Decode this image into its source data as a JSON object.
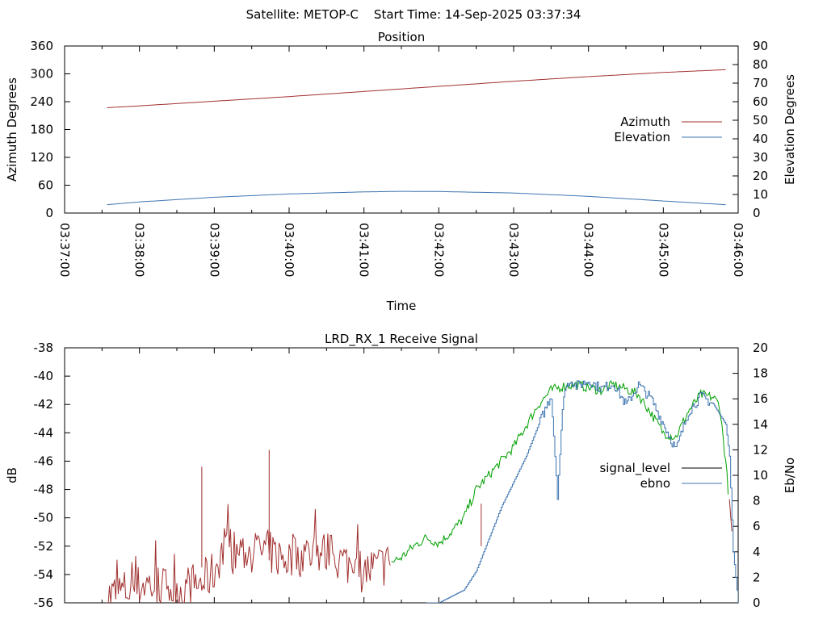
{
  "header": {
    "text": "Satellite: METOP-C    Start Time: 14-Sep-2025 03:37:34"
  },
  "chart_data": [
    {
      "type": "line",
      "title": "Position",
      "xlabel": "Time",
      "ylabel": "Azimuth Degrees",
      "y2label": "Elevation Degrees",
      "x_ticks": [
        "03:37:00",
        "03:38:00",
        "03:39:00",
        "03:40:00",
        "03:41:00",
        "03:42:00",
        "03:43:00",
        "03:44:00",
        "03:45:00",
        "03:46:00"
      ],
      "xlim": [
        0,
        540
      ],
      "ylim": [
        0,
        360
      ],
      "y2lim": [
        0,
        90
      ],
      "y_ticks": [
        0,
        60,
        120,
        180,
        240,
        300,
        360
      ],
      "y2_ticks": [
        0,
        10,
        20,
        30,
        40,
        50,
        60,
        70,
        80,
        90
      ],
      "legend_position": "right",
      "series": [
        {
          "name": "Azimuth",
          "axis": "left",
          "color": "#a0302e",
          "x": [
            34,
            60,
            120,
            180,
            240,
            300,
            360,
            420,
            480,
            530
          ],
          "values": [
            227,
            231,
            241,
            251,
            262,
            273,
            284,
            294,
            303,
            309
          ]
        },
        {
          "name": "Elevation",
          "axis": "right",
          "color": "#3d74b0",
          "x": [
            34,
            60,
            120,
            180,
            240,
            270,
            300,
            360,
            420,
            480,
            530
          ],
          "values": [
            4.5,
            6,
            8.5,
            10.3,
            11.4,
            11.7,
            11.6,
            10.8,
            9,
            6.5,
            4.5
          ]
        }
      ]
    },
    {
      "type": "line",
      "title": "LRD_RX_1 Receive Signal",
      "ylabel": "dB",
      "y2label": "Eb/No",
      "xlim": [
        0,
        540
      ],
      "ylim": [
        -56,
        -38
      ],
      "y2lim": [
        0,
        20
      ],
      "y_ticks": [
        -56,
        -54,
        -52,
        -50,
        -48,
        -46,
        -44,
        -42,
        -40,
        -38
      ],
      "y2_ticks": [
        0,
        2,
        4,
        6,
        8,
        10,
        12,
        14,
        16,
        18,
        20
      ],
      "legend_position": "right",
      "series": [
        {
          "name": "signal_level",
          "axis": "left",
          "color": "#a0302e",
          "color_high": "#00a000",
          "x": [
            34,
            45,
            55,
            65,
            75,
            85,
            95,
            100,
            110,
            120,
            125,
            130,
            140,
            150,
            160,
            170,
            180,
            190,
            200,
            210,
            220,
            230,
            240,
            250,
            260,
            270,
            280,
            290,
            300,
            310,
            320,
            330,
            340,
            350,
            360,
            370,
            380,
            390,
            400,
            410,
            420,
            430,
            440,
            450,
            460,
            470,
            480,
            490,
            500,
            510,
            520,
            525,
            530,
            535
          ],
          "values": [
            -55.6,
            -55.2,
            -55.0,
            -54.6,
            -54.9,
            -55.0,
            -55.1,
            -54.8,
            -54.6,
            -53.8,
            -52.5,
            -52.4,
            -52.4,
            -52.5,
            -52.3,
            -52.7,
            -52.9,
            -52.6,
            -52.4,
            -52.5,
            -53.0,
            -53.3,
            -53.8,
            -53.5,
            -53.2,
            -52.8,
            -52.0,
            -51.4,
            -51.8,
            -51.0,
            -50.0,
            -48.0,
            -47.0,
            -46.0,
            -45.0,
            -43.5,
            -42.0,
            -41.0,
            -40.7,
            -40.6,
            -40.8,
            -41.0,
            -40.6,
            -40.9,
            -41.3,
            -42.6,
            -44.0,
            -44.3,
            -42.5,
            -41.3,
            -41.5,
            -42.0,
            -46.0,
            -51.0
          ],
          "spikes": [
            {
              "x": 110,
              "values": [
                -46.4,
                -53.5
              ]
            },
            {
              "x": 164,
              "values": [
                -45.2,
                -53.0
              ]
            },
            {
              "x": 334,
              "values": [
                -49.0,
                -52.0
              ]
            }
          ]
        },
        {
          "name": "ebno",
          "axis": "right",
          "color": "#3d74b0",
          "x": [
            290,
            300,
            310,
            320,
            330,
            340,
            350,
            360,
            370,
            380,
            390,
            395,
            400,
            405,
            410,
            420,
            430,
            440,
            450,
            460,
            470,
            480,
            490,
            500,
            510,
            520,
            525,
            530,
            533,
            536,
            540
          ],
          "values": [
            0,
            0,
            0.5,
            1,
            2.5,
            5,
            7.5,
            9.5,
            11.5,
            14,
            16.3,
            8.5,
            16.5,
            17.5,
            17,
            17.4,
            16.8,
            17.2,
            15.5,
            17.1,
            16,
            14,
            12,
            15,
            16.2,
            15.6,
            14.8,
            14,
            11.5,
            4,
            0
          ]
        }
      ]
    }
  ]
}
